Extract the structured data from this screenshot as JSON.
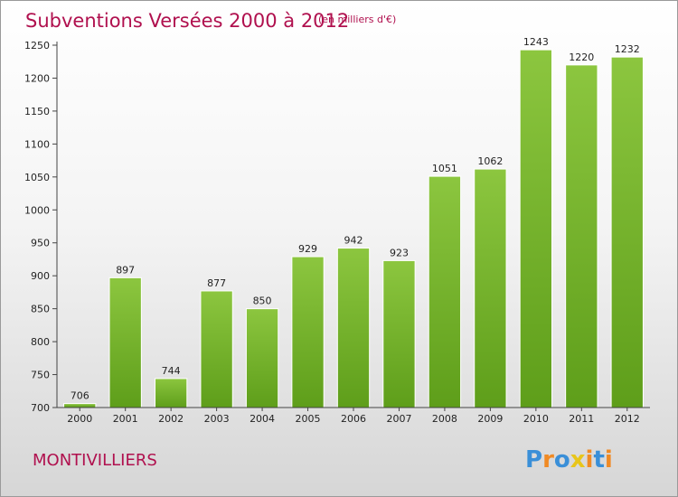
{
  "chart_data": {
    "type": "bar",
    "title": "Subventions Versées 2000 à 2012",
    "subtitle": "(en milliers d'€)",
    "categories": [
      "2000",
      "2001",
      "2002",
      "2003",
      "2004",
      "2005",
      "2006",
      "2007",
      "2008",
      "2009",
      "2010",
      "2011",
      "2012"
    ],
    "values": [
      706,
      897,
      744,
      877,
      850,
      929,
      942,
      923,
      1051,
      1062,
      1243,
      1220,
      1232
    ],
    "ylim": [
      700,
      1250
    ],
    "yticks": [
      700,
      750,
      800,
      850,
      900,
      950,
      1000,
      1050,
      1100,
      1150,
      1200,
      1250
    ],
    "grid": false,
    "bar_color": "#8cc63f",
    "bar_color_dark": "#5e9e1a"
  },
  "place_name": "MONTIVILLIERS",
  "logo": {
    "text": "Proxiti",
    "letters": [
      "P",
      "r",
      "o",
      "x",
      "i",
      "t",
      "i"
    ],
    "colors": [
      "#3a8fd8",
      "#f08a24",
      "#3a8fd8",
      "#e8c51a",
      "#f08a24",
      "#3a8fd8",
      "#f08a24"
    ]
  },
  "colors": {
    "title": "#b0104e",
    "axis": "#444444"
  }
}
